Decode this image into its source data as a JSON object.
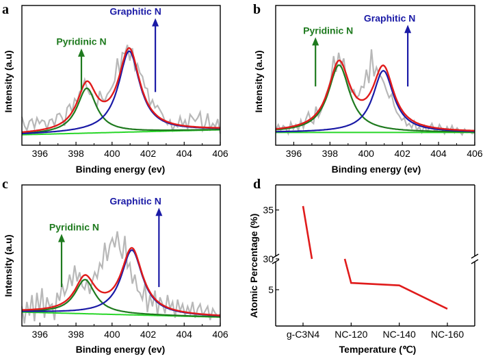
{
  "chart_data": [
    {
      "panel": "a",
      "type": "line",
      "xlabel": "Binding energy (ev)",
      "ylabel": "Intensity (a.u)",
      "xlim": [
        395,
        406
      ],
      "ylim": [
        0,
        1
      ],
      "xticks": [
        396,
        398,
        400,
        402,
        404,
        406
      ],
      "annotations": [
        {
          "text": "Pyridinic N",
          "x": 398.3,
          "color": "#1e7a1e",
          "arrow_x": 398.3,
          "arrow_from": 0.42,
          "arrow_to": 0.77
        },
        {
          "text": "Graphitic N",
          "x": 401.3,
          "color": "#1a1aa6",
          "arrow_x": 402.4,
          "arrow_from": 0.4,
          "arrow_to": 1.04
        }
      ],
      "background": 0.02,
      "background_slope": 0.004,
      "peaks": [
        {
          "name": "Pyridinic N",
          "center": 398.6,
          "height": 0.4,
          "width": 0.65,
          "color": "#1e7a1e"
        },
        {
          "name": "Graphitic N",
          "center": 400.95,
          "height": 0.72,
          "width": 0.72,
          "color": "#1a1aa6"
        }
      ],
      "series": [
        {
          "name": "Raw data",
          "color": "#b8b8b8",
          "values": [
            0.18,
            0.1,
            0.06,
            0.14,
            0.16,
            0.08,
            0.17,
            0.12,
            0.15,
            0.14,
            0.07,
            0.15,
            0.16,
            0.1,
            0.2,
            0.21,
            0.17,
            0.1,
            0.26,
            0.29,
            0.22,
            0.34,
            0.31,
            0.4,
            0.43,
            0.51,
            0.43,
            0.38,
            0.38,
            0.31,
            0.28,
            0.41,
            0.34,
            0.32,
            0.38,
            0.41,
            0.45,
            0.5,
            0.7,
            0.56,
            0.75,
            0.74,
            0.82,
            0.68,
            0.79,
            0.6,
            0.65,
            0.57,
            0.54,
            0.44,
            0.43,
            0.28,
            0.33,
            0.26,
            0.28,
            0.24,
            0.2,
            0.14,
            0.11,
            0.15,
            0.06,
            0.11,
            0.09,
            0.18,
            0.1,
            0.15,
            0.07,
            0.2,
            0.17,
            0.14,
            0.17,
            0.22,
            0.06,
            0.11,
            0.21,
            0.07,
            0.12,
            0.09,
            0.16,
            0.03
          ]
        },
        {
          "name": "Pyridinic N fit",
          "color": "#1e7a1e"
        },
        {
          "name": "Graphitic N fit",
          "color": "#1a1aa6"
        },
        {
          "name": "Envelope",
          "color": "#e01b1b"
        },
        {
          "name": "Background",
          "color": "#27d627"
        }
      ]
    },
    {
      "panel": "b",
      "type": "line",
      "xlabel": "Binding energy (ev)",
      "ylabel": "Intensity (a.u)",
      "xlim": [
        395,
        406
      ],
      "ylim": [
        0,
        1
      ],
      "xticks": [
        396,
        398,
        400,
        402,
        404,
        406
      ],
      "annotations": [
        {
          "text": "Pyridinic N",
          "x": 397.9,
          "color": "#1e7a1e",
          "arrow_x": 397.2,
          "arrow_from": 0.45,
          "arrow_to": 0.87
        },
        {
          "text": "Graphitic N",
          "x": 401.3,
          "color": "#1a1aa6",
          "arrow_x": 402.3,
          "arrow_from": 0.45,
          "arrow_to": 0.98
        }
      ],
      "background": 0.04,
      "background_slope": 0.0,
      "peaks": [
        {
          "name": "Pyridinic N",
          "center": 398.5,
          "height": 0.6,
          "width": 0.72,
          "color": "#1e7a1e"
        },
        {
          "name": "Graphitic N",
          "center": 400.95,
          "height": 0.55,
          "width": 0.7,
          "color": "#1a1aa6"
        }
      ],
      "series": [
        {
          "name": "Raw data",
          "color": "#b8b8b8",
          "values": [
            0.06,
            0.11,
            0.06,
            0.1,
            0.08,
            0.03,
            0.13,
            0.07,
            0.11,
            0.06,
            0.15,
            0.08,
            0.16,
            0.22,
            0.14,
            0.12,
            0.27,
            0.18,
            0.23,
            0.3,
            0.38,
            0.44,
            0.52,
            0.72,
            0.58,
            0.75,
            0.63,
            0.7,
            0.52,
            0.47,
            0.4,
            0.42,
            0.35,
            0.37,
            0.45,
            0.44,
            0.6,
            0.48,
            0.78,
            0.54,
            0.62,
            0.56,
            0.53,
            0.48,
            0.41,
            0.35,
            0.38,
            0.28,
            0.22,
            0.19,
            0.15,
            0.17,
            0.1,
            0.12,
            0.08,
            0.14,
            0.06,
            0.09,
            0.04,
            0.1,
            0.05,
            0.08,
            0.12,
            0.06,
            0.05,
            0.11,
            0.07,
            0.03,
            0.09,
            0.05,
            0.1,
            0.04,
            0.08,
            0.05,
            0.02,
            0.07,
            0.04,
            0.05,
            0.03,
            0.04
          ]
        },
        {
          "name": "Pyridinic N fit",
          "color": "#1e7a1e"
        },
        {
          "name": "Graphitic N fit",
          "color": "#1a1aa6"
        },
        {
          "name": "Envelope",
          "color": "#e01b1b"
        },
        {
          "name": "Background",
          "color": "#27d627"
        }
      ]
    },
    {
      "panel": "c",
      "type": "line",
      "xlabel": "Binding energy (ev)",
      "ylabel": "Intensity (a.u)",
      "xlim": [
        395,
        406
      ],
      "ylim": [
        0,
        1
      ],
      "xticks": [
        396,
        398,
        400,
        402,
        404,
        406
      ],
      "annotations": [
        {
          "text": "Pyridinic N",
          "x": 397.9,
          "color": "#1e7a1e",
          "arrow_x": 397.2,
          "arrow_from": 0.27,
          "arrow_to": 0.72
        },
        {
          "text": "Graphitic N",
          "x": 401.3,
          "color": "#1a1aa6",
          "arrow_x": 402.6,
          "arrow_from": 0.27,
          "arrow_to": 0.95
        }
      ],
      "background": 0.05,
      "background_slope": -0.004,
      "peaks": [
        {
          "name": "Pyridinic N",
          "center": 398.5,
          "height": 0.3,
          "width": 0.68,
          "color": "#1e7a1e"
        },
        {
          "name": "Graphitic N",
          "center": 401.1,
          "height": 0.57,
          "width": 0.72,
          "color": "#1a1aa6"
        }
      ],
      "series": [
        {
          "name": "Raw data",
          "color": "#b8b8b8",
          "values": [
            0.1,
            -0.05,
            0.14,
            0.02,
            0.2,
            -0.03,
            0.22,
            0.05,
            0.26,
            0.0,
            0.18,
            0.1,
            0.12,
            -0.02,
            0.22,
            0.15,
            0.3,
            0.2,
            0.26,
            0.38,
            0.28,
            0.46,
            0.32,
            0.4,
            0.28,
            0.25,
            0.34,
            0.21,
            0.32,
            0.4,
            0.35,
            0.48,
            0.44,
            0.66,
            0.5,
            0.64,
            0.7,
            0.62,
            0.76,
            0.6,
            0.52,
            0.72,
            0.44,
            0.48,
            0.3,
            0.38,
            0.24,
            0.22,
            0.16,
            0.3,
            0.05,
            0.2,
            0.1,
            0.24,
            0.02,
            0.18,
            0.12,
            0.04,
            0.2,
            0.08,
            0.14,
            0.0,
            0.16,
            0.06,
            0.12,
            0.02,
            0.1,
            0.04,
            0.14,
            0.0,
            0.08,
            0.12,
            0.02,
            0.06,
            0.1,
            -0.02,
            0.08,
            0.04,
            0.02,
            0.03
          ]
        },
        {
          "name": "Pyridinic N fit",
          "color": "#1e7a1e"
        },
        {
          "name": "Graphitic N fit",
          "color": "#1a1aa6"
        },
        {
          "name": "Envelope",
          "color": "#e01b1b"
        },
        {
          "name": "Background",
          "color": "#27d627"
        }
      ]
    },
    {
      "panel": "d",
      "type": "line",
      "xlabel": "Temperature (℃)",
      "ylabel": "Atomic Percentage (%)",
      "categories": [
        "g-C3N4",
        "NC-120",
        "NC-140",
        "NC-160"
      ],
      "axis_break": {
        "lower": [
          0,
          10
        ],
        "upper": [
          30,
          37
        ]
      },
      "yticks": [
        {
          "label": "5",
          "value": 5
        },
        {
          "label": "30",
          "value": 30
        },
        {
          "label": "35",
          "value": 35
        }
      ],
      "series": [
        {
          "name": "Atomic Percentage",
          "color": "#e01b1b",
          "values": [
            35.4,
            6.1,
            5.7,
            1.9
          ]
        }
      ]
    }
  ]
}
